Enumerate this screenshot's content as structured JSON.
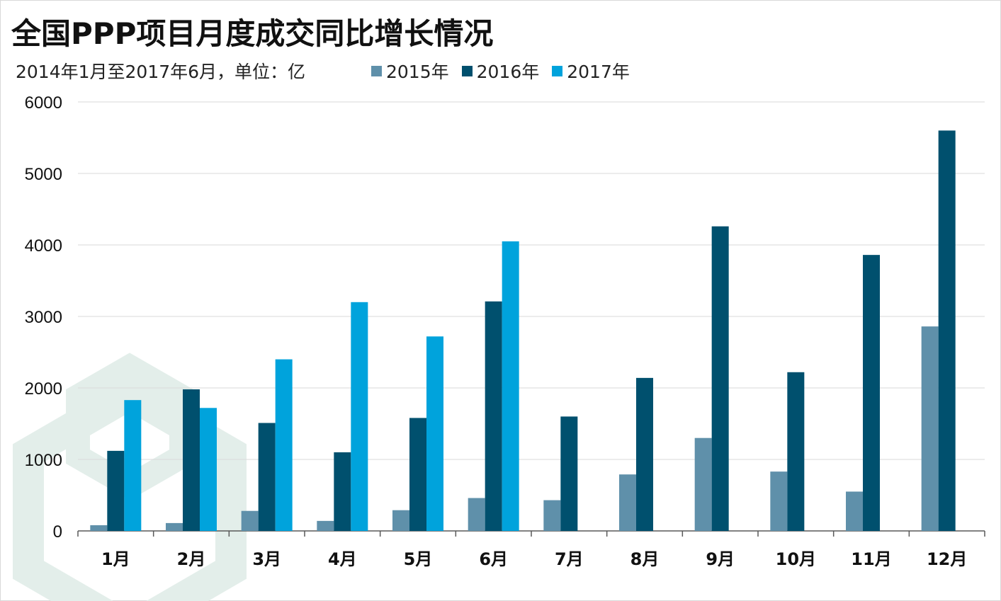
{
  "header": {
    "title": "全国PPP项目月度成交同比增长情况",
    "subtitle": "2014年1月至2017年6月，单位：亿"
  },
  "chart_data": {
    "type": "bar",
    "title": "全国PPP项目月度成交同比增长情况",
    "subtitle": "2014年1月至2017年6月，单位：亿",
    "categories": [
      "1月",
      "2月",
      "3月",
      "4月",
      "5月",
      "6月",
      "7月",
      "8月",
      "9月",
      "10月",
      "11月",
      "12月"
    ],
    "series": [
      {
        "name": "2015年",
        "color": "#5f90aa",
        "values": [
          80,
          110,
          280,
          140,
          290,
          460,
          430,
          790,
          1300,
          830,
          550,
          2860
        ]
      },
      {
        "name": "2016年",
        "color": "#00506e",
        "values": [
          1120,
          1980,
          1510,
          1100,
          1580,
          3210,
          1600,
          2140,
          4260,
          2220,
          3860,
          5600
        ]
      },
      {
        "name": "2017年",
        "color": "#00a3dc",
        "values": [
          1830,
          1720,
          2400,
          3200,
          2720,
          4050,
          null,
          null,
          null,
          null,
          null,
          null
        ]
      }
    ],
    "ylim": [
      0,
      6000
    ],
    "yticks": [
      0,
      1000,
      2000,
      3000,
      4000,
      5000,
      6000
    ],
    "grid": true,
    "legend_position": "top"
  },
  "colors": {
    "grid": "#d9d9d9",
    "axis": "#595959",
    "watermark": "#e3eeea"
  }
}
